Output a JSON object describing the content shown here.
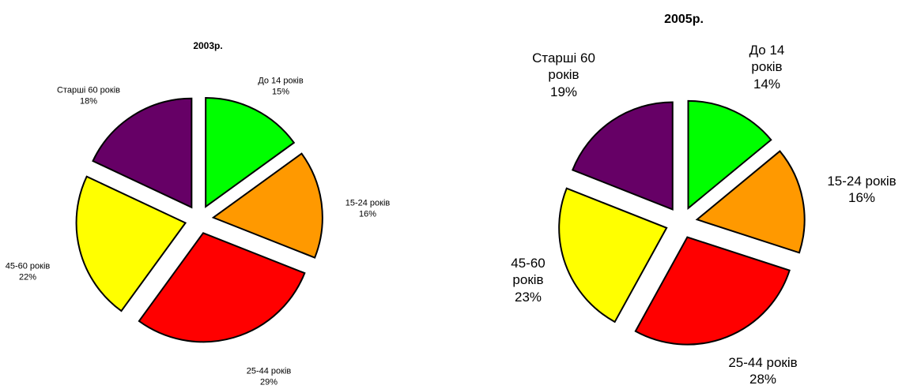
{
  "chart_data": [
    {
      "type": "pie",
      "title": "2003р.",
      "categories": [
        "До 14 років",
        "15-24 років",
        "25-44 років",
        "45-60 років",
        "Старші 60 років"
      ],
      "values": [
        15,
        16,
        29,
        22,
        18
      ],
      "value_labels": [
        "15%",
        "16%",
        "29%",
        "22%",
        "18%"
      ],
      "colors": [
        "#00ff00",
        "#ff9900",
        "#ff0000",
        "#ffff00",
        "#660066"
      ]
    },
    {
      "type": "pie",
      "title": "2005р.",
      "categories": [
        "До 14 років",
        "15-24 років",
        "25-44 років",
        "45-60 років",
        "Старші 60 років"
      ],
      "values": [
        14,
        16,
        28,
        23,
        19
      ],
      "value_labels": [
        "14%",
        "16%",
        "28%",
        "23%",
        "19%"
      ],
      "colors": [
        "#00ff00",
        "#ff9900",
        "#ff0000",
        "#ffff00",
        "#660066"
      ]
    }
  ]
}
